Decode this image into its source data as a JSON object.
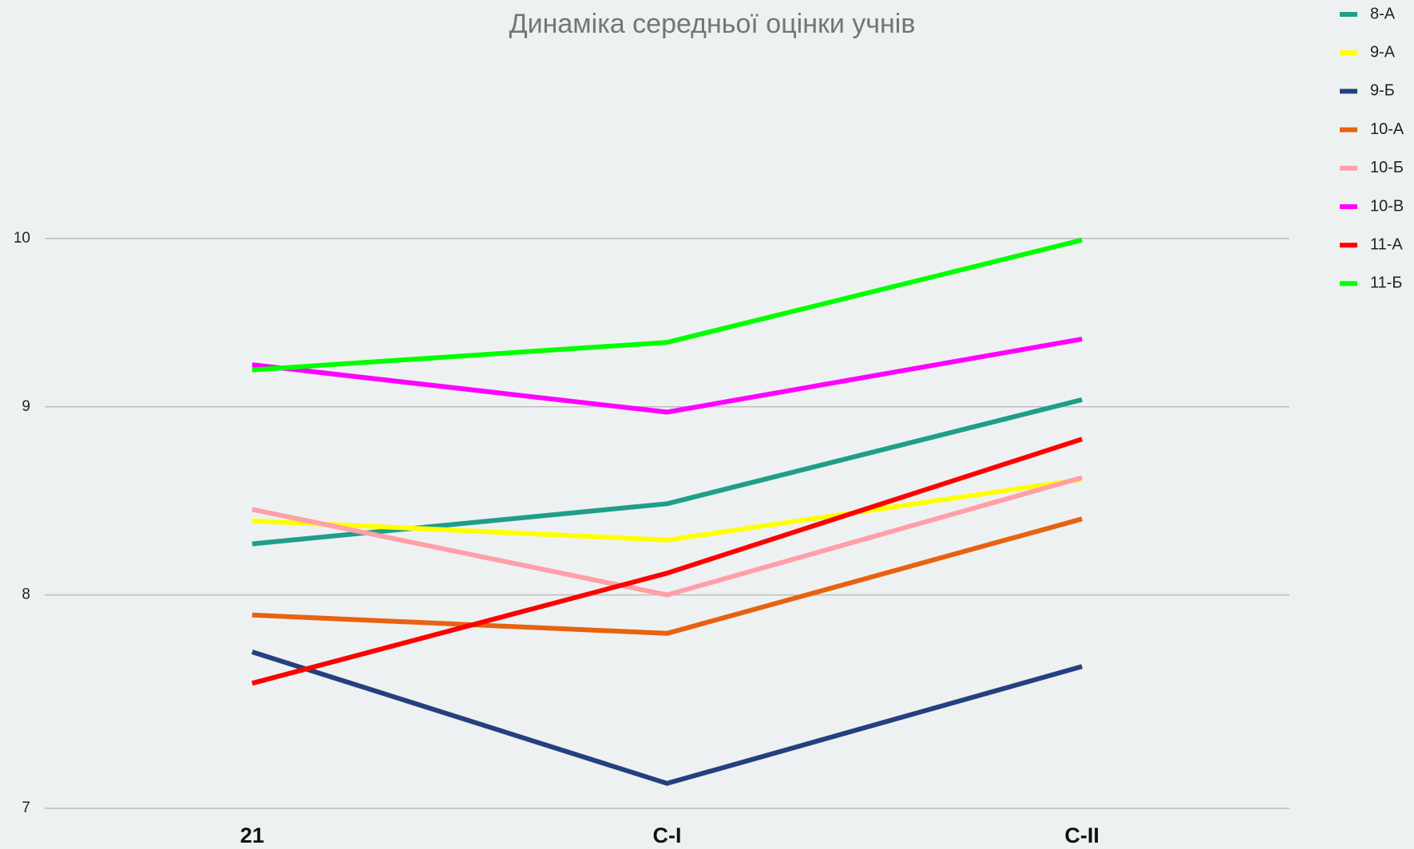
{
  "chart_data": {
    "type": "line",
    "title": "Динаміка середньої оцінки учнів",
    "categories": [
      "21",
      "С-І",
      "С-ІІ"
    ],
    "series": [
      {
        "name": "8-А",
        "color": "#1f9e89",
        "values": [
          8.26,
          8.47,
          9.04
        ]
      },
      {
        "name": "9-А",
        "color": "#ffff00",
        "values": [
          8.38,
          8.28,
          8.6
        ]
      },
      {
        "name": "9-Б",
        "color": "#253f80",
        "values": [
          7.72,
          7.11,
          7.65
        ]
      },
      {
        "name": "10-А",
        "color": "#e8620f",
        "values": [
          7.9,
          7.81,
          8.39
        ]
      },
      {
        "name": "10-Б",
        "color": "#ff9fa8",
        "values": [
          8.44,
          8.0,
          8.61
        ]
      },
      {
        "name": "10-В",
        "color": "#ff00ff",
        "values": [
          9.24,
          8.97,
          9.39
        ]
      },
      {
        "name": "11-А",
        "color": "#ff0000",
        "values": [
          7.57,
          8.11,
          8.82
        ]
      },
      {
        "name": "11-Б",
        "color": "#00ff00",
        "values": [
          9.21,
          9.37,
          9.99
        ]
      }
    ],
    "ylim": [
      7,
      11
    ],
    "yticks": [
      7,
      8,
      9,
      10
    ],
    "log_scale": true,
    "grid": true,
    "legend": "right"
  }
}
